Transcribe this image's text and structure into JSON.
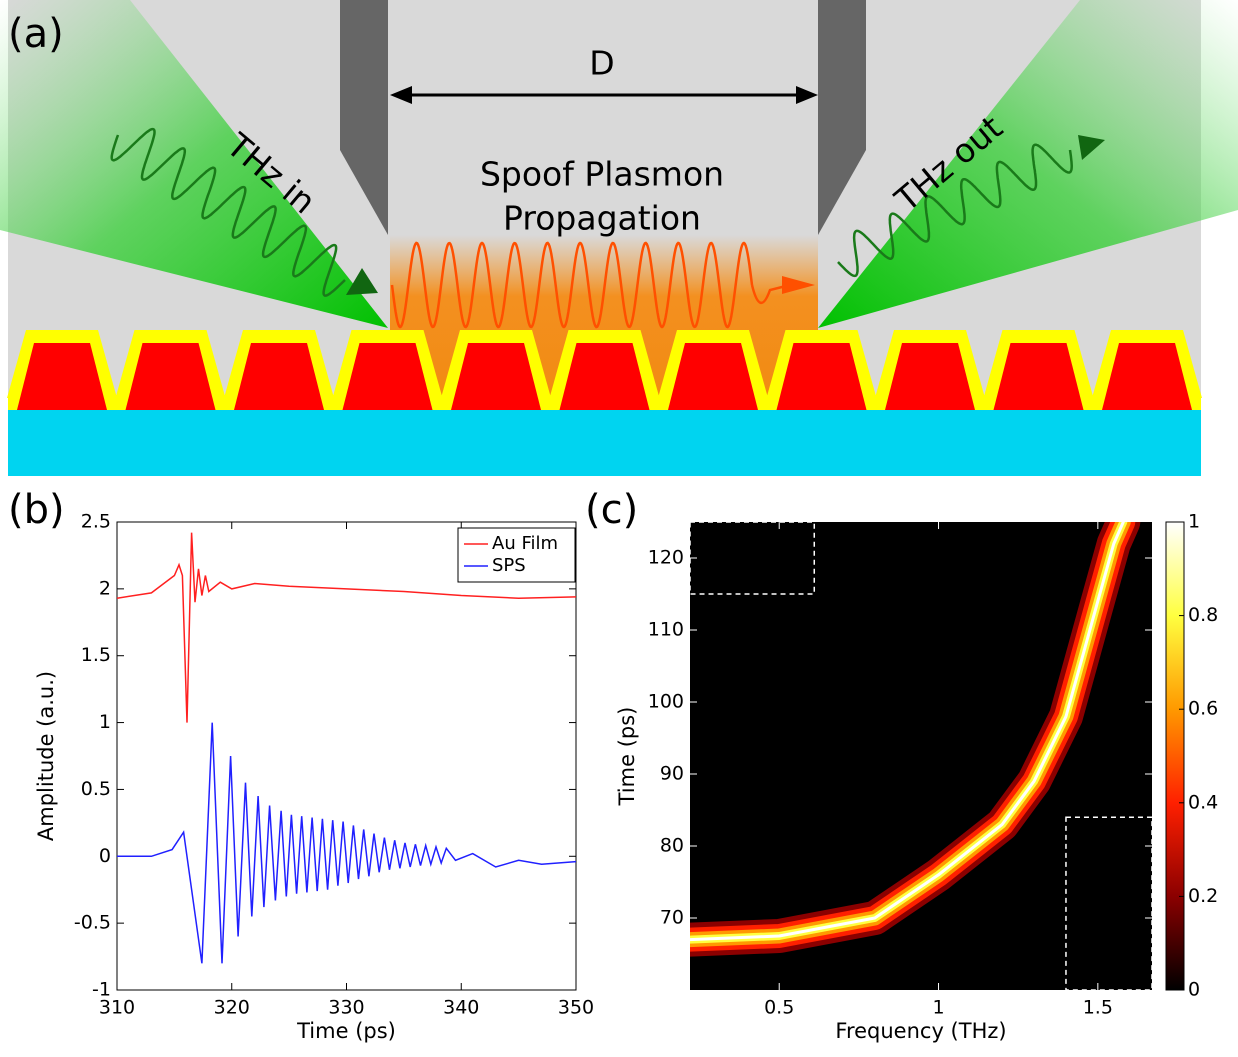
{
  "panel_a": {
    "label": "(a)",
    "distance": "D",
    "caption": [
      "Spoof Plasmon",
      "Propagation"
    ],
    "input": "THz in",
    "output": "THz out"
  },
  "chart_data": [
    {
      "type": "line",
      "panel_label": "(b)",
      "xlabel": "Time (ps)",
      "ylabel": "Amplitude (a.u.)",
      "xlim": [
        310,
        350
      ],
      "xticks": [
        310,
        320,
        330,
        340,
        350
      ],
      "ylim": [
        -1,
        2.5
      ],
      "yticks": [
        -1,
        -0.5,
        0,
        0.5,
        1,
        1.5,
        2,
        2.5
      ],
      "grid": false,
      "legend": "top-right",
      "series": [
        {
          "name": "Au Film",
          "color": "#ff2020",
          "x": [
            310,
            313,
            315,
            315.4,
            315.7,
            316.1,
            316.5,
            316.8,
            317.1,
            317.4,
            317.7,
            318,
            319,
            320,
            322,
            325,
            330,
            335,
            340,
            345,
            350
          ],
          "values": [
            1.93,
            1.97,
            2.1,
            2.18,
            2.1,
            1.0,
            2.42,
            1.9,
            2.15,
            1.95,
            2.1,
            1.98,
            2.05,
            2.0,
            2.04,
            2.02,
            2.0,
            1.98,
            1.95,
            1.93,
            1.94
          ]
        },
        {
          "name": "SPS",
          "color": "#2020ff",
          "x": [
            310,
            313,
            314.8,
            315.8,
            317.4,
            318.3,
            319.15,
            319.9,
            320.55,
            321.2,
            321.75,
            322.3,
            322.8,
            323.3,
            323.8,
            324.3,
            324.75,
            325.2,
            325.65,
            326.1,
            326.55,
            327.0,
            327.45,
            327.9,
            328.35,
            328.8,
            329.25,
            329.7,
            330.15,
            330.6,
            331.05,
            331.5,
            331.95,
            332.4,
            332.85,
            333.3,
            333.75,
            334.2,
            334.65,
            335.1,
            335.55,
            336.0,
            336.45,
            336.9,
            337.35,
            337.8,
            338.25,
            338.7,
            339.5,
            341,
            343,
            345,
            347,
            350
          ],
          "values": [
            0,
            0,
            0.05,
            0.18,
            -0.8,
            1.0,
            -0.8,
            0.75,
            -0.6,
            0.55,
            -0.45,
            0.45,
            -0.38,
            0.38,
            -0.33,
            0.34,
            -0.3,
            0.31,
            -0.28,
            0.3,
            -0.27,
            0.29,
            -0.26,
            0.28,
            -0.25,
            0.27,
            -0.22,
            0.26,
            -0.2,
            0.23,
            -0.17,
            0.2,
            -0.15,
            0.17,
            -0.12,
            0.14,
            -0.1,
            0.12,
            -0.09,
            0.1,
            -0.08,
            0.09,
            -0.07,
            0.08,
            -0.06,
            0.07,
            -0.05,
            0.06,
            -0.03,
            0.02,
            -0.08,
            -0.03,
            -0.06,
            -0.04
          ]
        }
      ]
    },
    {
      "type": "heatmap",
      "panel_label": "(c)",
      "xlabel": "Frequency (THz)",
      "ylabel": "Time (ps)",
      "xlim": [
        0.22,
        1.67
      ],
      "xticks": [
        0.5,
        1,
        1.5
      ],
      "ylim": [
        60,
        125
      ],
      "yticks": [
        70,
        80,
        90,
        100,
        110,
        120
      ],
      "ridge": {
        "x": [
          0.22,
          0.5,
          0.8,
          1.0,
          1.2,
          1.3,
          1.4,
          1.45,
          1.5,
          1.55,
          1.58
        ],
        "y": [
          67,
          67.5,
          70,
          76,
          83,
          89,
          98,
          106,
          114,
          122,
          125
        ]
      },
      "regions": [
        {
          "x": [
            0.22,
            0.61
          ],
          "y": [
            115,
            125
          ]
        },
        {
          "x": [
            1.4,
            1.67
          ],
          "y": [
            60,
            84
          ]
        }
      ],
      "colorbar": {
        "lim": [
          0,
          1
        ],
        "ticks": [
          0,
          0.2,
          0.4,
          0.6,
          0.8,
          1
        ],
        "colors": [
          "#000000",
          "#8b0000",
          "#ff2000",
          "#ff9900",
          "#ffff40",
          "#ffffff"
        ]
      }
    }
  ]
}
